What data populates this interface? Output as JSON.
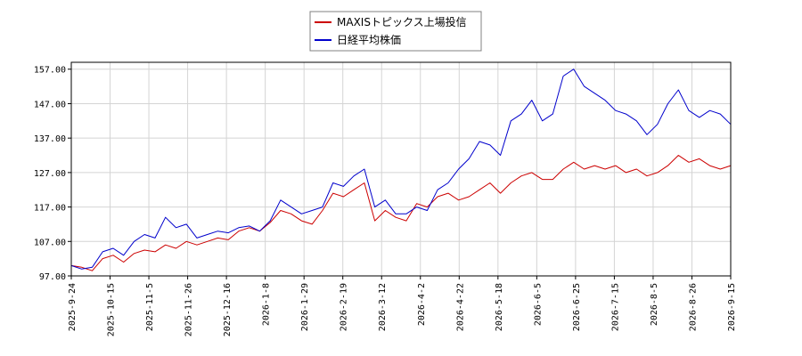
{
  "chart_data": {
    "type": "line",
    "title": "",
    "xlabel": "",
    "ylabel": "",
    "ylim": [
      97.0,
      159.0
    ],
    "yticks": [
      "97.00",
      "107.00",
      "117.00",
      "127.00",
      "137.00",
      "147.00",
      "157.00"
    ],
    "xticks": [
      "2025-9-24",
      "2025-10-15",
      "2025-11-5",
      "2025-11-26",
      "2025-12-16",
      "2026-1-8",
      "2026-1-29",
      "2026-2-19",
      "2026-3-12",
      "2026-4-2",
      "2026-4-22",
      "2026-5-18",
      "2026-6-5",
      "2026-6-25",
      "2026-7-15",
      "2026-8-5",
      "2026-8-26",
      "2026-9-15"
    ],
    "grid": true,
    "legend_position": "top-center",
    "series": [
      {
        "name": "MAXISトピックス上場投信",
        "color": "#cc0000",
        "points": [
          [
            0,
            100
          ],
          [
            1,
            99.5
          ],
          [
            2,
            98.5
          ],
          [
            3,
            102
          ],
          [
            4,
            103
          ],
          [
            5,
            101
          ],
          [
            6,
            103.5
          ],
          [
            7,
            104.5
          ],
          [
            8,
            104
          ],
          [
            9,
            106
          ],
          [
            10,
            105
          ],
          [
            11,
            107
          ],
          [
            12,
            106
          ],
          [
            13,
            107
          ],
          [
            14,
            108
          ],
          [
            15,
            107.5
          ],
          [
            16,
            110
          ],
          [
            17,
            111
          ],
          [
            18,
            110
          ],
          [
            19,
            112.5
          ],
          [
            20,
            116
          ],
          [
            21,
            115
          ],
          [
            22,
            113
          ],
          [
            23,
            112
          ],
          [
            24,
            116
          ],
          [
            25,
            121
          ],
          [
            26,
            120
          ],
          [
            27,
            122
          ],
          [
            28,
            124
          ],
          [
            29,
            113
          ],
          [
            30,
            116
          ],
          [
            31,
            114
          ],
          [
            32,
            113
          ],
          [
            33,
            118
          ],
          [
            34,
            117
          ],
          [
            35,
            120
          ],
          [
            36,
            121
          ],
          [
            37,
            119
          ],
          [
            38,
            120
          ],
          [
            39,
            122
          ],
          [
            40,
            124
          ],
          [
            41,
            121
          ],
          [
            42,
            124
          ],
          [
            43,
            126
          ],
          [
            44,
            127
          ],
          [
            45,
            125
          ],
          [
            46,
            125
          ],
          [
            47,
            128
          ],
          [
            48,
            130
          ],
          [
            49,
            128
          ],
          [
            50,
            129
          ],
          [
            51,
            128
          ],
          [
            52,
            129
          ],
          [
            53,
            127
          ],
          [
            54,
            128
          ],
          [
            55,
            126
          ],
          [
            56,
            127
          ],
          [
            57,
            129
          ],
          [
            58,
            132
          ],
          [
            59,
            130
          ],
          [
            60,
            131
          ],
          [
            61,
            129
          ],
          [
            62,
            128
          ],
          [
            63,
            129
          ]
        ]
      },
      {
        "name": "日経平均株価",
        "color": "#0000cc",
        "points": [
          [
            0,
            100
          ],
          [
            1,
            99
          ],
          [
            2,
            99.5
          ],
          [
            3,
            104
          ],
          [
            4,
            105
          ],
          [
            5,
            103
          ],
          [
            6,
            107
          ],
          [
            7,
            109
          ],
          [
            8,
            108
          ],
          [
            9,
            114
          ],
          [
            10,
            111
          ],
          [
            11,
            112
          ],
          [
            12,
            108
          ],
          [
            13,
            109
          ],
          [
            14,
            110
          ],
          [
            15,
            109.5
          ],
          [
            16,
            111
          ],
          [
            17,
            111.5
          ],
          [
            18,
            110
          ],
          [
            19,
            113
          ],
          [
            20,
            119
          ],
          [
            21,
            117
          ],
          [
            22,
            115
          ],
          [
            23,
            116
          ],
          [
            24,
            117
          ],
          [
            25,
            124
          ],
          [
            26,
            123
          ],
          [
            27,
            126
          ],
          [
            28,
            128
          ],
          [
            29,
            117
          ],
          [
            30,
            119
          ],
          [
            31,
            115
          ],
          [
            32,
            115
          ],
          [
            33,
            117
          ],
          [
            34,
            116
          ],
          [
            35,
            122
          ],
          [
            36,
            124
          ],
          [
            37,
            128
          ],
          [
            38,
            131
          ],
          [
            39,
            136
          ],
          [
            40,
            135
          ],
          [
            41,
            132
          ],
          [
            42,
            142
          ],
          [
            43,
            144
          ],
          [
            44,
            148
          ],
          [
            45,
            142
          ],
          [
            46,
            144
          ],
          [
            47,
            155
          ],
          [
            48,
            157
          ],
          [
            49,
            152
          ],
          [
            50,
            150
          ],
          [
            51,
            148
          ],
          [
            52,
            145
          ],
          [
            53,
            144
          ],
          [
            54,
            142
          ],
          [
            55,
            138
          ],
          [
            56,
            141
          ],
          [
            57,
            147
          ],
          [
            58,
            151
          ],
          [
            59,
            145
          ],
          [
            60,
            143
          ],
          [
            61,
            145
          ],
          [
            62,
            144
          ],
          [
            63,
            141
          ]
        ]
      }
    ]
  }
}
